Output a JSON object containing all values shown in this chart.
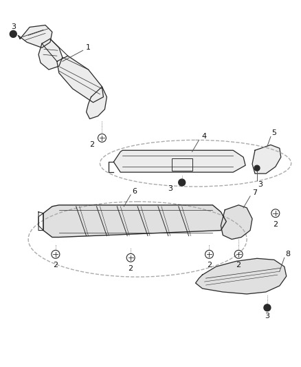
{
  "bg_color": "#ffffff",
  "line_color": "#2a2a2a",
  "gray_fill": "#e0e0e0",
  "light_fill": "#ececec",
  "dashed_color": "#aaaaaa",
  "label_color": "#111111",
  "leader_color": "#555555"
}
